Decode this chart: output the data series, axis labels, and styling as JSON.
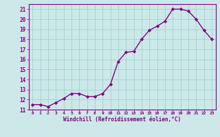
{
  "x": [
    0,
    1,
    2,
    3,
    4,
    5,
    6,
    7,
    8,
    9,
    10,
    11,
    12,
    13,
    14,
    15,
    16,
    17,
    18,
    19,
    20,
    21,
    22,
    23
  ],
  "y": [
    11.5,
    11.5,
    11.3,
    11.7,
    12.1,
    12.6,
    12.6,
    12.3,
    12.3,
    12.6,
    13.5,
    15.8,
    16.7,
    16.8,
    18.0,
    18.9,
    19.3,
    19.8,
    21.0,
    21.0,
    20.8,
    20.0,
    18.9,
    18.0
  ],
  "xlabel": "Windchill (Refroidissement éolien,°C)",
  "ylim": [
    11,
    21.5
  ],
  "xlim": [
    -0.5,
    23.5
  ],
  "yticks": [
    11,
    12,
    13,
    14,
    15,
    16,
    17,
    18,
    19,
    20,
    21
  ],
  "xticks": [
    0,
    1,
    2,
    3,
    4,
    5,
    6,
    7,
    8,
    9,
    10,
    11,
    12,
    13,
    14,
    15,
    16,
    17,
    18,
    19,
    20,
    21,
    22,
    23
  ],
  "line_color": "#800080",
  "marker_color": "#800080",
  "bg_color": "#cce8e8",
  "grid_color": "#99cccc",
  "axis_label_color": "#800080",
  "tick_color": "#800080",
  "spine_color": "#800080"
}
